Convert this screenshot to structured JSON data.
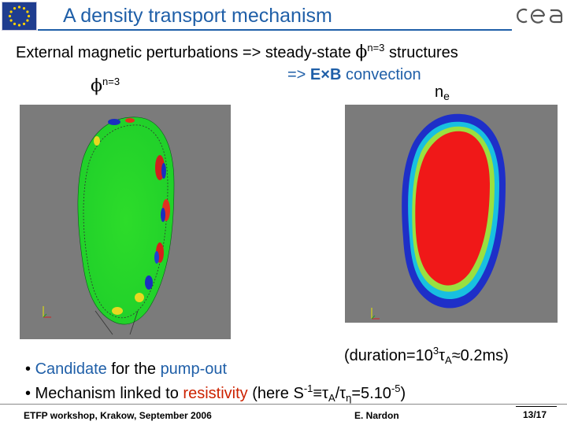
{
  "header": {
    "title": "A density transport mechanism"
  },
  "statement": {
    "line1_pre": "External magnetic perturbations => steady-state ",
    "line1_phi": "ϕ",
    "line1_sup": "n=3",
    "line1_post": " structures",
    "line2_pre": "=> ",
    "line2_bold": "E×B",
    "line2_post": " convection"
  },
  "labels": {
    "phi_symbol": "ϕ",
    "phi_sup": "n=3",
    "ne_main": "n",
    "ne_sub": "e"
  },
  "duration": {
    "pre": "(duration=10",
    "sup": "3",
    "tau": "τ",
    "sub": "A",
    "post": "≈0.2ms)"
  },
  "bullets": {
    "b1_dot": "• ",
    "b1_blue1": "Candidate",
    "b1_mid": " for the ",
    "b1_blue2": "pump-out",
    "b2_pre": "• Mechanism linked to ",
    "b2_red": "resistivity",
    "b2_mid": " (here S",
    "b2_sup1": "-1",
    "b2_eq": "≡τ",
    "b2_subA": "A",
    "b2_slash": "/τ",
    "b2_subeta": "η",
    "b2_val": "=5.10",
    "b2_sup2": "-5",
    "b2_end": ")"
  },
  "footer": {
    "left": "ETFP workshop, Krakow, September 2006",
    "mid": "E. Nardon",
    "page": "13/17"
  },
  "colors": {
    "accent": "#1f5fa8",
    "red_text": "#cc2200",
    "panel_bg": "#7b7b7b"
  },
  "icons": {
    "eu": "eu-flag-logo",
    "cea": "cea-logo"
  }
}
